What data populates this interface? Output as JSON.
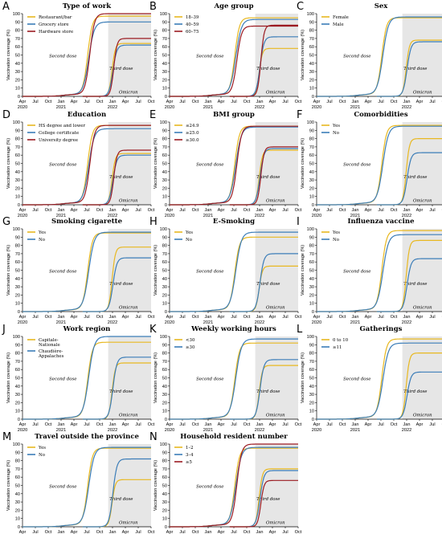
{
  "figure": {
    "colors": {
      "yellow": "#E8B820",
      "blue": "#3B7DB8",
      "red": "#9B1B22",
      "green": "#6F9A3A",
      "shade": "#E6E6E6"
    },
    "x_ticks": [
      "Apr",
      "Jul",
      "Oct",
      "Jan",
      "Apr",
      "Jul",
      "Oct",
      "Jan",
      "Apr",
      "Jul",
      "Oct"
    ],
    "year_labels": [
      "2020",
      "2021",
      "2022"
    ],
    "y_ticks": [
      "0",
      "10",
      "20",
      "30",
      "40",
      "50",
      "60",
      "70",
      "80",
      "90",
      "100"
    ],
    "ylabel": "Vaccination coverage (%)",
    "second_dose_label": "Second dose",
    "third_dose_label": "Third dose",
    "omicron_label": "Omicron"
  },
  "chart_data": [
    {
      "letter": "A",
      "title": "Type of work",
      "type": "line",
      "ylim": [
        0,
        100
      ],
      "legend": "top-left",
      "omicron_shading": true,
      "series": [
        {
          "name": "Restaurant/bar",
          "color": "yellow",
          "second": 97,
          "third": 64
        },
        {
          "name": "Grocery store",
          "color": "blue",
          "second": 90,
          "third": 62
        },
        {
          "name": "Hardware store",
          "color": "red",
          "second": 100,
          "third": 70
        }
      ]
    },
    {
      "letter": "B",
      "title": "Age group",
      "type": "line",
      "ylim": [
        0,
        100
      ],
      "legend": "top-left",
      "omicron_shading": true,
      "series": [
        {
          "name": "18–39",
          "color": "yellow",
          "second": 95,
          "third": 58
        },
        {
          "name": "40–59",
          "color": "blue",
          "second": 93,
          "third": 72
        },
        {
          "name": "60–75",
          "color": "red",
          "second": 85,
          "third": 86
        }
      ]
    },
    {
      "letter": "C",
      "title": "Sex",
      "type": "line",
      "ylim": [
        0,
        100
      ],
      "legend": "top-left",
      "omicron_shading": true,
      "series": [
        {
          "name": "Female",
          "color": "yellow",
          "second": 95,
          "third": 68
        },
        {
          "name": "Male",
          "color": "blue",
          "second": 96,
          "third": 66
        }
      ]
    },
    {
      "letter": "D",
      "title": "Education",
      "type": "line",
      "ylim": [
        0,
        100
      ],
      "legend": "top-left",
      "omicron_shading": true,
      "series": [
        {
          "name": "HS degree and lower",
          "color": "yellow",
          "second": 96,
          "third": 62
        },
        {
          "name": "College certificate",
          "color": "blue",
          "second": 92,
          "third": 60
        },
        {
          "name": "University degree",
          "color": "red",
          "second": 96,
          "third": 66
        }
      ]
    },
    {
      "letter": "E",
      "title": "BMI group",
      "type": "line",
      "ylim": [
        0,
        100
      ],
      "legend": "top-left",
      "omicron_shading": true,
      "series": [
        {
          "name": "≤24.9",
          "color": "yellow",
          "second": 95,
          "third": 66
        },
        {
          "name": "≥25.0",
          "color": "blue",
          "second": 94,
          "third": 68
        },
        {
          "name": "≥30.0",
          "color": "red",
          "second": 95,
          "third": 70
        }
      ]
    },
    {
      "letter": "F",
      "title": "Comorbidities",
      "type": "line",
      "ylim": [
        0,
        100
      ],
      "legend": "top-left",
      "omicron_shading": true,
      "series": [
        {
          "name": "Yes",
          "color": "yellow",
          "second": 96,
          "third": 80
        },
        {
          "name": "No",
          "color": "blue",
          "second": 95,
          "third": 63
        }
      ]
    },
    {
      "letter": "G",
      "title": "Smoking cigarette",
      "type": "line",
      "ylim": [
        0,
        100
      ],
      "legend": "top-left",
      "omicron_shading": true,
      "series": [
        {
          "name": "Yes",
          "color": "yellow",
          "second": 95,
          "third": 78
        },
        {
          "name": "No",
          "color": "blue",
          "second": 96,
          "third": 65
        }
      ]
    },
    {
      "letter": "H",
      "title": "E-Smoking",
      "type": "line",
      "ylim": [
        0,
        100
      ],
      "legend": "top-left",
      "omicron_shading": true,
      "series": [
        {
          "name": "Yes",
          "color": "yellow",
          "second": 90,
          "third": 55
        },
        {
          "name": "No",
          "color": "blue",
          "second": 96,
          "third": 70
        }
      ]
    },
    {
      "letter": "I",
      "title": "Influenza vaccine",
      "type": "line",
      "ylim": [
        0,
        100
      ],
      "legend": "top-left",
      "omicron_shading": true,
      "series": [
        {
          "name": "Yes",
          "color": "yellow",
          "second": 98,
          "third": 86
        },
        {
          "name": "No",
          "color": "blue",
          "second": 93,
          "third": 64
        }
      ]
    },
    {
      "letter": "J",
      "title": "Work region",
      "type": "line",
      "ylim": [
        0,
        100
      ],
      "legend": "top-left",
      "omicron_shading": true,
      "series": [
        {
          "name": "Capitale-Nationale",
          "color": "yellow",
          "second": 93,
          "third": 68
        },
        {
          "name": "Chaudière-Appalaches",
          "color": "blue",
          "second": 100,
          "third": 75
        }
      ]
    },
    {
      "letter": "K",
      "title": "Weekly working hours",
      "type": "line",
      "ylim": [
        0,
        100
      ],
      "legend": "top-left",
      "omicron_shading": true,
      "series": [
        {
          "name": "<30",
          "color": "yellow",
          "second": 92,
          "third": 65
        },
        {
          "name": "≥30",
          "color": "blue",
          "second": 97,
          "third": 72
        }
      ]
    },
    {
      "letter": "L",
      "title": "Gatherings",
      "type": "line",
      "ylim": [
        0,
        100
      ],
      "legend": "top-left",
      "omicron_shading": true,
      "series": [
        {
          "name": "0 to 10",
          "color": "yellow",
          "second": 97,
          "third": 80
        },
        {
          "name": "≥11",
          "color": "blue",
          "second": 92,
          "third": 57
        }
      ]
    },
    {
      "letter": "M",
      "title": "Travel outside the province",
      "type": "line",
      "ylim": [
        0,
        100
      ],
      "legend": "top-left",
      "omicron_shading": true,
      "series": [
        {
          "name": "Yes",
          "color": "yellow",
          "second": 95,
          "third": 57
        },
        {
          "name": "No",
          "color": "blue",
          "second": 96,
          "third": 82
        }
      ]
    },
    {
      "letter": "N",
      "title": "Household resident number",
      "type": "line",
      "ylim": [
        0,
        100
      ],
      "legend": "top-left",
      "omicron_shading": true,
      "series": [
        {
          "name": "1–2",
          "color": "yellow",
          "second": 95,
          "third": 70
        },
        {
          "name": "3–4",
          "color": "blue",
          "second": 96,
          "third": 68
        },
        {
          "name": "≥5",
          "color": "red",
          "second": 100,
          "third": 56
        }
      ]
    }
  ]
}
